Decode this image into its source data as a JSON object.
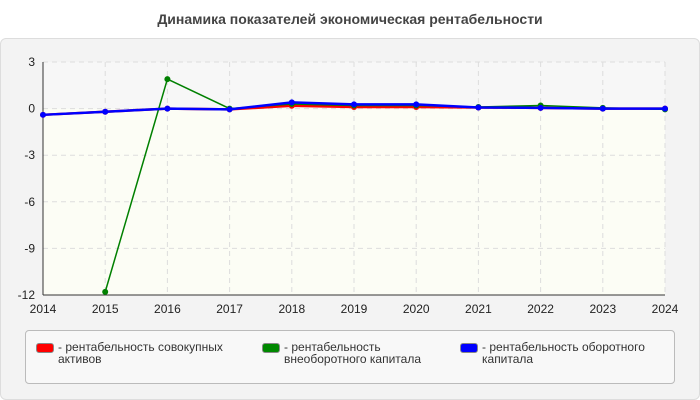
{
  "chart_data": {
    "type": "line",
    "title": "Динамика показателей экономическая рентабельности",
    "x": [
      2014,
      2015,
      2016,
      2017,
      2018,
      2019,
      2020,
      2021,
      2022,
      2023,
      2024
    ],
    "ylim": [
      -12,
      3
    ],
    "yticks": [
      3,
      0,
      -3,
      -6,
      -9,
      -12
    ],
    "grid": true,
    "legend": "bottom",
    "series": [
      {
        "name": "рентабельность совокупных активов",
        "color": "#ff0000",
        "values": [
          -0.4,
          -0.2,
          0,
          -0.05,
          0.18,
          0.1,
          0.1,
          0.07,
          0.05,
          0,
          0
        ]
      },
      {
        "name": "рентабельность внеоборотного капитала",
        "color": "#008000",
        "values": [
          null,
          -11.8,
          1.9,
          0,
          0.3,
          0.2,
          0.2,
          0.1,
          0.2,
          0.05,
          -0.05
        ]
      },
      {
        "name": "рентабельность оборотного капитала",
        "color": "#0000ff",
        "values": [
          -0.4,
          -0.2,
          0,
          -0.05,
          0.4,
          0.27,
          0.27,
          0.07,
          0.05,
          0,
          0
        ]
      }
    ]
  }
}
